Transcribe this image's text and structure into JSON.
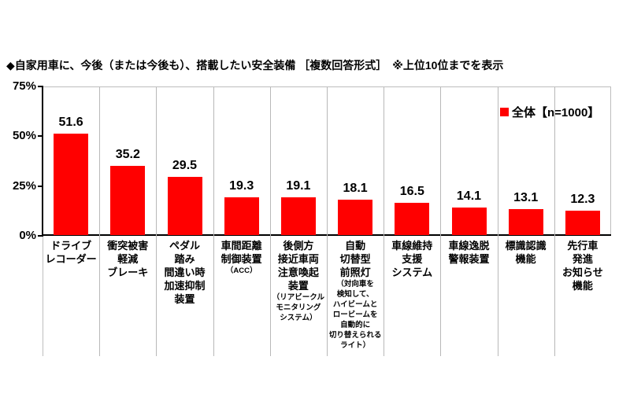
{
  "title": "◆自家用車に、今後（または今後も）、搭載したい安全装備 ［複数回答形式］　※上位10位までを表示",
  "legend": {
    "label": "全体【n=1000】",
    "color": "#ff0000"
  },
  "y_axis": {
    "ticks": [
      {
        "label": "75%",
        "value": 75
      },
      {
        "label": "50%",
        "value": 50
      },
      {
        "label": "25%",
        "value": 25
      },
      {
        "label": "0%",
        "value": 0
      }
    ]
  },
  "chart_data": {
    "type": "bar",
    "title": "自家用車に、今後（または今後も）、搭載したい安全装備［複数回答形式］※上位10位までを表示",
    "series_name": "全体【n=1000】",
    "categories": [
      "ドライブレコーダー",
      "衝突被害軽減ブレーキ",
      "ペダル踏み間違い時加速抑制装置",
      "車間距離制御装置（ACC）",
      "後側方接近車両注意喚起装置（リアビークルモニタリングシステム）",
      "自動切替型前照灯（対向車を検知して、ハイビームとロービームを自動的に切り替えられるライト）",
      "車線維持支援システム",
      "車線逸脱警報装置",
      "標識認識機能",
      "先行車発進お知らせ機能"
    ],
    "values": [
      51.6,
      35.2,
      29.5,
      19.3,
      19.1,
      18.1,
      16.5,
      14.1,
      13.1,
      12.3
    ],
    "ylim": [
      0,
      75
    ],
    "y_ticks": [
      0,
      25,
      50,
      75
    ],
    "bar_color": "#ff0000",
    "legend_position": "top-right-inside-plot",
    "grid": "vertical-category-separators-only",
    "xlabel": "",
    "ylabel": ""
  },
  "category_display": [
    {
      "main": [
        "ドライブ",
        "レコーダー"
      ],
      "sub": []
    },
    {
      "main": [
        "衝突被害",
        "軽減",
        "ブレーキ"
      ],
      "sub": []
    },
    {
      "main": [
        "ペダル",
        "踏み",
        "間違い時",
        "加速抑制",
        "装置"
      ],
      "sub": []
    },
    {
      "main": [
        "車間距離",
        "制御装置"
      ],
      "sub": [
        "（ACC）"
      ]
    },
    {
      "main": [
        "後側方",
        "接近車両",
        "注意喚起",
        "装置"
      ],
      "sub": [
        "（リアビークル",
        "モニタリング",
        "システム）"
      ]
    },
    {
      "main": [
        "自動",
        "切替型",
        "前照灯"
      ],
      "sub": [
        "（対向車を",
        "検知して、",
        "ハイビームと",
        "ロービームを",
        "自動的に",
        "切り替えられる",
        "ライト）"
      ]
    },
    {
      "main": [
        "車線維持",
        "支援",
        "システム"
      ],
      "sub": []
    },
    {
      "main": [
        "車線逸脱",
        "警報装置"
      ],
      "sub": []
    },
    {
      "main": [
        "標識認識",
        "機能"
      ],
      "sub": []
    },
    {
      "main": [
        "先行車",
        "発進",
        "お知らせ",
        "機能"
      ],
      "sub": []
    }
  ]
}
